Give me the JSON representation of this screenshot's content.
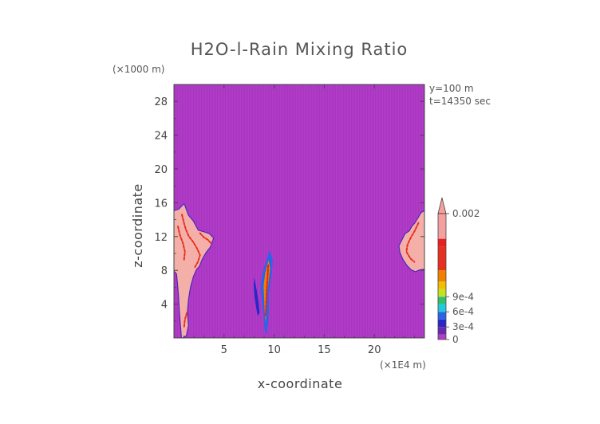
{
  "chart_data": {
    "type": "heatmap",
    "title": "H2O-l-Rain Mixing Ratio",
    "xlabel": "x-coordinate",
    "ylabel": "z-coordinate",
    "x_unit": "(×1E4 m)",
    "y_unit": "(×1000 m)",
    "annotations": [
      "y=100 m",
      "t=14350 sec"
    ],
    "xlim": [
      0,
      25
    ],
    "ylim": [
      0,
      30
    ],
    "x_ticks": [
      5,
      10,
      15,
      20
    ],
    "y_ticks": [
      4,
      8,
      12,
      16,
      20,
      24,
      28
    ],
    "background_color": "#b23cc8",
    "colorbar": {
      "labels": [
        {
          "value": 0,
          "text": "0"
        },
        {
          "value": 0.0003,
          "text": "3e-4"
        },
        {
          "value": 0.0006,
          "text": "6e-4"
        },
        {
          "value": 0.0009,
          "text": "9e-4"
        },
        {
          "value": 0.002,
          "text": "0.002"
        }
      ],
      "colors": [
        "#b23cc8",
        "#6a28b0",
        "#2828c8",
        "#2a64e8",
        "#20c8e0",
        "#30c070",
        "#c8e020",
        "#f0c000",
        "#f08000",
        "#e83020",
        "#e82020",
        "#f4a0a0"
      ],
      "extend": "max"
    },
    "regions": [
      {
        "name": "left-rain-core",
        "color": "#f4b0a8",
        "polygon": [
          [
            0,
            8
          ],
          [
            0,
            15
          ],
          [
            0.5,
            15.2
          ],
          [
            1,
            15.8
          ],
          [
            1.4,
            14.5
          ],
          [
            1.9,
            13.8
          ],
          [
            2.4,
            12.7
          ],
          [
            3,
            12.5
          ],
          [
            3.5,
            12.3
          ],
          [
            3.9,
            11.8
          ],
          [
            3.6,
            10.8
          ],
          [
            3.2,
            10.2
          ],
          [
            2.8,
            9.4
          ],
          [
            2.5,
            8.5
          ],
          [
            2.2,
            8.1
          ],
          [
            1.9,
            7.3
          ],
          [
            1.6,
            6
          ],
          [
            1.4,
            4.5
          ],
          [
            1.3,
            3
          ],
          [
            1.4,
            1.5
          ],
          [
            1.2,
            0.3
          ],
          [
            0.8,
            0
          ],
          [
            0.7,
            1.5
          ],
          [
            0.6,
            3
          ],
          [
            0.5,
            5
          ],
          [
            0.4,
            6.5
          ],
          [
            0.3,
            7.6
          ]
        ]
      },
      {
        "name": "right-rain-core",
        "color": "#f4b0a8",
        "polygon": [
          [
            25,
            15
          ],
          [
            24.7,
            14.8
          ],
          [
            24.4,
            14.2
          ],
          [
            24.1,
            13.6
          ],
          [
            23.8,
            13.2
          ],
          [
            23.5,
            12.6
          ],
          [
            23.1,
            12.3
          ],
          [
            22.8,
            11.6
          ],
          [
            22.5,
            10.9
          ],
          [
            22.6,
            10.1
          ],
          [
            22.9,
            9.3
          ],
          [
            23.3,
            8.6
          ],
          [
            23.7,
            8.1
          ],
          [
            24.1,
            7.9
          ],
          [
            24.5,
            8.1
          ],
          [
            25,
            8.2
          ]
        ]
      },
      {
        "name": "center-shaft-outer",
        "color": "#2a64e8",
        "polygon": [
          [
            9.55,
            10.4
          ],
          [
            9.85,
            9.3
          ],
          [
            9.8,
            8
          ],
          [
            9.6,
            6.5
          ],
          [
            9.45,
            5
          ],
          [
            9.5,
            3.5
          ],
          [
            9.4,
            2
          ],
          [
            9.25,
            0.4
          ],
          [
            9.05,
            0.8
          ],
          [
            8.95,
            2.5
          ],
          [
            8.8,
            4.2
          ],
          [
            8.65,
            5.8
          ],
          [
            8.75,
            7.2
          ],
          [
            9.0,
            8.4
          ],
          [
            9.3,
            9.4
          ]
        ]
      },
      {
        "name": "center-shaft-inner",
        "color": "#f08000",
        "polygon": [
          [
            9.45,
            9.2
          ],
          [
            9.6,
            8.2
          ],
          [
            9.45,
            6.8
          ],
          [
            9.3,
            5.4
          ],
          [
            9.25,
            3.5
          ],
          [
            9.15,
            1.8
          ],
          [
            9.05,
            3.2
          ],
          [
            9.0,
            4.8
          ],
          [
            8.95,
            6.2
          ],
          [
            9.1,
            7.6
          ],
          [
            9.3,
            8.6
          ]
        ]
      },
      {
        "name": "center-side-streak",
        "color": "#2828c8",
        "polygon": [
          [
            8.0,
            7.2
          ],
          [
            8.15,
            6.3
          ],
          [
            8.3,
            5.4
          ],
          [
            8.45,
            4.2
          ],
          [
            8.55,
            3.0
          ],
          [
            8.35,
            2.6
          ],
          [
            8.2,
            3.6
          ],
          [
            8.05,
            4.8
          ],
          [
            7.95,
            6.2
          ]
        ]
      }
    ],
    "core_streaks": [
      {
        "name": "left-core-red",
        "color": "#e83020",
        "points": [
          [
            0.8,
            14.6
          ],
          [
            1.0,
            13.6
          ],
          [
            1.2,
            12.8
          ],
          [
            1.5,
            12.0
          ],
          [
            1.9,
            11.4
          ],
          [
            2.3,
            10.6
          ],
          [
            2.6,
            9.8
          ],
          [
            2.4,
            9.0
          ],
          [
            2.1,
            8.4
          ]
        ]
      },
      {
        "name": "left-core-red-2",
        "color": "#e83020",
        "points": [
          [
            2.6,
            12.4
          ],
          [
            3.0,
            11.9
          ],
          [
            3.4,
            11.6
          ],
          [
            3.7,
            11.2
          ]
        ]
      },
      {
        "name": "left-core-red-3",
        "color": "#e83020",
        "points": [
          [
            0.4,
            13.2
          ],
          [
            0.6,
            12.2
          ],
          [
            0.9,
            11.2
          ],
          [
            1.1,
            10.2
          ],
          [
            1.0,
            9.2
          ]
        ]
      },
      {
        "name": "left-core-bottom",
        "color": "#e83020",
        "points": [
          [
            1.3,
            3.0
          ],
          [
            1.1,
            2.2
          ],
          [
            1.0,
            1.2
          ]
        ]
      },
      {
        "name": "right-core-red",
        "color": "#e83020",
        "points": [
          [
            24.4,
            13.6
          ],
          [
            24.0,
            12.6
          ],
          [
            23.6,
            11.8
          ],
          [
            23.3,
            11.0
          ],
          [
            23.2,
            10.2
          ],
          [
            23.6,
            9.4
          ],
          [
            24.0,
            9.0
          ]
        ]
      },
      {
        "name": "center-core-red",
        "color": "#e82020",
        "points": [
          [
            9.4,
            8.6
          ],
          [
            9.35,
            7.2
          ],
          [
            9.25,
            5.6
          ],
          [
            9.2,
            4.0
          ],
          [
            9.15,
            2.6
          ]
        ]
      }
    ]
  }
}
